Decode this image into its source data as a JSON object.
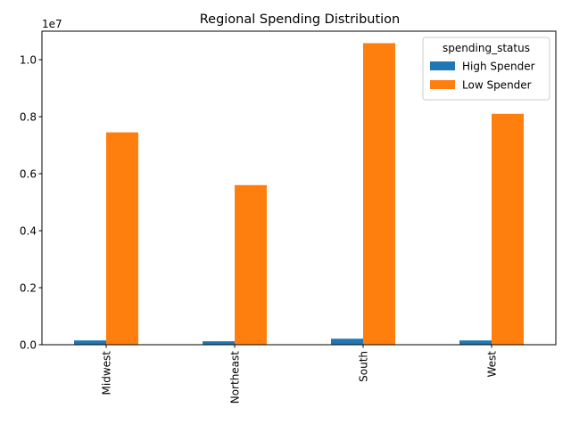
{
  "chart_data": {
    "type": "bar",
    "title": "Regional Spending Distribution",
    "xlabel": "",
    "ylabel": "",
    "y_offset_label": "1e7",
    "categories": [
      "Midwest",
      "Northeast",
      "South",
      "West"
    ],
    "ylim": [
      0,
      11000000
    ],
    "yticks": [
      0,
      2000000,
      4000000,
      6000000,
      8000000,
      10000000
    ],
    "ytick_labels": [
      "0.0",
      "0.2",
      "0.4",
      "0.6",
      "0.8",
      "1.0"
    ],
    "grid": false,
    "legend": {
      "title": "spending_status",
      "placement": "top-right"
    },
    "series": [
      {
        "name": "High Spender",
        "color": "#1f77b4",
        "values": [
          150000,
          120000,
          210000,
          150000
        ]
      },
      {
        "name": "Low Spender",
        "color": "#ff7f0e",
        "values": [
          7450000,
          5600000,
          10580000,
          8100000
        ]
      }
    ]
  }
}
